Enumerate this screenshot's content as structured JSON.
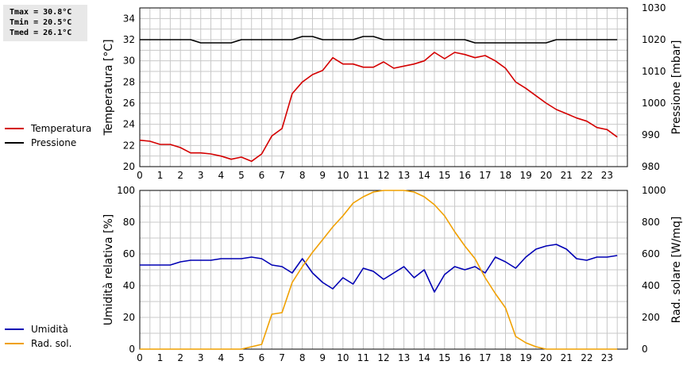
{
  "stats": {
    "tmax": "Tmax = 30.8°C",
    "tmin": "Tmin = 20.5°C",
    "tmed": "Tmed = 26.1°C"
  },
  "colors": {
    "temperature": "#d40000",
    "pressure": "#000000",
    "humidity": "#0000b4",
    "solar": "#f0a000",
    "grid": "#c8c8c8"
  },
  "chart_data": [
    {
      "type": "line",
      "x_ticks": [
        "0",
        "1",
        "2",
        "3",
        "4",
        "5",
        "6",
        "7",
        "8",
        "9",
        "10",
        "11",
        "12",
        "13",
        "14",
        "15",
        "16",
        "17",
        "18",
        "19",
        "20",
        "21",
        "22",
        "23"
      ],
      "xlim": [
        0,
        24
      ],
      "ylabel": "Temperatura [°C]",
      "y2label": "Pressione [mbar]",
      "ylim": [
        20,
        35
      ],
      "y_ticks": [
        "20",
        "22",
        "24",
        "26",
        "28",
        "30",
        "32",
        "34"
      ],
      "y2lim": [
        980,
        1030
      ],
      "y2_ticks": [
        "980",
        "990",
        "1000",
        "1010",
        "1020",
        "1030"
      ],
      "grid": true,
      "legend_position": "left",
      "series": [
        {
          "name": "Temperatura",
          "axis": "left",
          "x": [
            0,
            0.5,
            1,
            1.5,
            2,
            2.5,
            3,
            3.5,
            4,
            4.5,
            5,
            5.5,
            6,
            6.5,
            7,
            7.5,
            8,
            8.5,
            9,
            9.5,
            10,
            10.5,
            11,
            11.5,
            12,
            12.5,
            13,
            13.5,
            14,
            14.5,
            15,
            15.5,
            16,
            16.5,
            17,
            17.5,
            18,
            18.5,
            19,
            19.5,
            20,
            20.5,
            21,
            21.5,
            22,
            22.5,
            23,
            23.5
          ],
          "values": [
            22.5,
            22.4,
            22.1,
            22.1,
            21.8,
            21.3,
            21.3,
            21.2,
            21.0,
            20.7,
            20.9,
            20.5,
            21.2,
            22.9,
            23.6,
            26.9,
            28.0,
            28.7,
            29.1,
            30.3,
            29.7,
            29.7,
            29.4,
            29.4,
            29.9,
            29.3,
            29.5,
            29.7,
            30.0,
            30.8,
            30.2,
            30.8,
            30.6,
            30.3,
            30.5,
            30.0,
            29.3,
            28.0,
            27.4,
            26.7,
            26.0,
            25.4,
            25.0,
            24.6,
            24.3,
            23.7,
            23.5,
            22.8
          ]
        },
        {
          "name": "Pressione",
          "axis": "right",
          "x": [
            0,
            0.5,
            1,
            1.5,
            2,
            2.5,
            3,
            3.5,
            4,
            4.5,
            5,
            5.5,
            6,
            6.5,
            7,
            7.5,
            8,
            8.5,
            9,
            9.5,
            10,
            10.5,
            11,
            11.5,
            12,
            12.5,
            13,
            13.5,
            14,
            14.5,
            15,
            15.5,
            16,
            16.5,
            17,
            17.5,
            18,
            18.5,
            19,
            19.5,
            20,
            20.5,
            21,
            21.5,
            22,
            22.5,
            23,
            23.5
          ],
          "values": [
            1020,
            1020,
            1020,
            1020,
            1020,
            1020,
            1019,
            1019,
            1019,
            1019,
            1020,
            1020,
            1020,
            1020,
            1020,
            1020,
            1021,
            1021,
            1020,
            1020,
            1020,
            1020,
            1021,
            1021,
            1020,
            1020,
            1020,
            1020,
            1020,
            1020,
            1020,
            1020,
            1020,
            1019,
            1019,
            1019,
            1019,
            1019,
            1019,
            1019,
            1019,
            1020,
            1020,
            1020,
            1020,
            1020,
            1020,
            1020
          ]
        }
      ]
    },
    {
      "type": "line",
      "x_ticks": [
        "0",
        "1",
        "2",
        "3",
        "4",
        "5",
        "6",
        "7",
        "8",
        "9",
        "10",
        "11",
        "12",
        "13",
        "14",
        "15",
        "16",
        "17",
        "18",
        "19",
        "20",
        "21",
        "22",
        "23"
      ],
      "xlim": [
        0,
        24
      ],
      "ylabel": "Umidità relativa [%]",
      "y2label": "Rad. solare [W/mq]",
      "ylim": [
        0,
        100
      ],
      "y_ticks": [
        "0",
        "20",
        "40",
        "60",
        "80",
        "100"
      ],
      "y2lim": [
        0,
        1000
      ],
      "y2_ticks": [
        "0",
        "200",
        "400",
        "600",
        "800",
        "1000"
      ],
      "grid": true,
      "legend_position": "left",
      "series": [
        {
          "name": "Umidità",
          "axis": "left",
          "x": [
            0,
            0.5,
            1,
            1.5,
            2,
            2.5,
            3,
            3.5,
            4,
            4.5,
            5,
            5.5,
            6,
            6.5,
            7,
            7.5,
            8,
            8.5,
            9,
            9.5,
            10,
            10.5,
            11,
            11.5,
            12,
            12.5,
            13,
            13.5,
            14,
            14.5,
            15,
            15.5,
            16,
            16.5,
            17,
            17.5,
            18,
            18.5,
            19,
            19.5,
            20,
            20.5,
            21,
            21.5,
            22,
            22.5,
            23,
            23.5
          ],
          "values": [
            53,
            53,
            53,
            53,
            55,
            56,
            56,
            56,
            57,
            57,
            57,
            58,
            57,
            53,
            52,
            48,
            57,
            48,
            42,
            38,
            45,
            41,
            51,
            49,
            44,
            48,
            52,
            45,
            50,
            36,
            47,
            52,
            50,
            52,
            48,
            58,
            55,
            51,
            58,
            63,
            65,
            66,
            63,
            57,
            56,
            58,
            58,
            59
          ]
        },
        {
          "name": "Rad. sol.",
          "axis": "right",
          "x": [
            0,
            0.5,
            1,
            1.5,
            2,
            2.5,
            3,
            3.5,
            4,
            4.5,
            5,
            5.5,
            6,
            6.5,
            7,
            7.5,
            8,
            8.5,
            9,
            9.5,
            10,
            10.5,
            11,
            11.5,
            12,
            12.5,
            13,
            13.5,
            14,
            14.5,
            15,
            15.5,
            16,
            16.5,
            17,
            17.5,
            18,
            18.5,
            19,
            19.5,
            20,
            20.5,
            21,
            21.5,
            22,
            22.5,
            23,
            23.5
          ],
          "values": [
            0,
            0,
            0,
            0,
            0,
            0,
            0,
            0,
            0,
            0,
            0,
            15,
            30,
            220,
            230,
            420,
            520,
            610,
            690,
            770,
            840,
            920,
            960,
            990,
            1000,
            1000,
            1000,
            990,
            960,
            910,
            840,
            740,
            650,
            570,
            450,
            350,
            260,
            80,
            40,
            15,
            0,
            0,
            0,
            0,
            0,
            0,
            0,
            0
          ]
        }
      ]
    }
  ]
}
